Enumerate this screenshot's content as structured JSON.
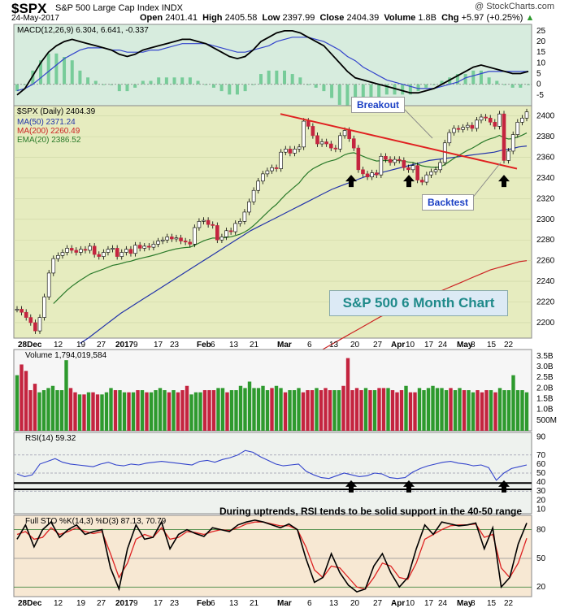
{
  "header": {
    "symbol": "$SPX",
    "name": "S&P 500 Large Cap Index",
    "exchange": "INDX",
    "copyright": "@ StockCharts.com",
    "date": "24-May-2017",
    "open_label": "Open",
    "open": "2401.41",
    "high_label": "High",
    "high": "2405.58",
    "low_label": "Low",
    "low": "2397.99",
    "close_label": "Close",
    "close": "2404.39",
    "volume_label": "Volume",
    "volume": "1.8B",
    "chg_label": "Chg",
    "chg": "+5.97 (+0.25%)",
    "chg_arrow": "▲"
  },
  "colors": {
    "price_bg": "#e6ecbf",
    "macd_bg": "#d7ecde",
    "vol_bg": "#f6f6f6",
    "rsi_bg": "#eef2ee",
    "sto_bg": "#f7e8d3",
    "up": "#2e9a2e",
    "down": "#c4243f",
    "ma50": "#2233aa",
    "ma200": "#cc2222",
    "ema20": "#2a7a2a",
    "trend": "#e02020",
    "macd": "#000000",
    "signal": "#3344cc",
    "hist": "#77cc99"
  },
  "annotations": {
    "breakout": "Breakout",
    "backtest": "Backtest",
    "title": "S&P 500 6 Month Chart",
    "rsi_note": "During uptrends, RSI tends to be solid support in the 40-50 range"
  },
  "chart_data": [
    {
      "type": "candlestick",
      "title": "$SPX (Daily) 2404.39",
      "legend": [
        {
          "name": "MA(50) 2371.24",
          "color": "#2233aa"
        },
        {
          "name": "MA(200) 2260.49",
          "color": "#cc2222"
        },
        {
          "name": "EMA(20) 2386.52",
          "color": "#2a7a2a"
        }
      ],
      "ylim": [
        2185,
        2410
      ],
      "yticks": [
        2200,
        2220,
        2240,
        2260,
        2280,
        2300,
        2320,
        2340,
        2360,
        2380,
        2400
      ],
      "x_labels": [
        "28Dec",
        "12",
        "19",
        "27",
        "2017",
        "9",
        "17",
        "23",
        "Feb",
        "6",
        "13",
        "21",
        "Mar",
        "6",
        "13",
        "20",
        "27",
        "Apr",
        "10",
        "17",
        "24",
        "May",
        "8",
        "15",
        "22"
      ],
      "close": [
        2213,
        2210,
        2205,
        2200,
        2192,
        2205,
        2225,
        2248,
        2262,
        2265,
        2268,
        2272,
        2270,
        2268,
        2271,
        2270,
        2274,
        2266,
        2264,
        2268,
        2271,
        2272,
        2264,
        2268,
        2271,
        2267,
        2275,
        2272,
        2274,
        2273,
        2276,
        2279,
        2280,
        2283,
        2281,
        2282,
        2279,
        2278,
        2276,
        2292,
        2298,
        2299,
        2295,
        2294,
        2280,
        2283,
        2289,
        2288,
        2296,
        2298,
        2307,
        2317,
        2328,
        2337,
        2344,
        2347,
        2350,
        2349,
        2365,
        2368,
        2364,
        2368,
        2370,
        2395,
        2390,
        2381,
        2373,
        2375,
        2373,
        2369,
        2368,
        2381,
        2386,
        2378,
        2369,
        2348,
        2344,
        2341,
        2345,
        2343,
        2361,
        2358,
        2355,
        2358,
        2357,
        2350,
        2348,
        2352,
        2338,
        2336,
        2343,
        2346,
        2348,
        2355,
        2374,
        2384,
        2388,
        2387,
        2389,
        2391,
        2388,
        2396,
        2399,
        2398,
        2394,
        2390,
        2402,
        2357,
        2366,
        2382,
        2394,
        2398,
        2404
      ],
      "ma50": [
        2180,
        2185,
        2191,
        2197,
        2203,
        2209,
        2214,
        2219,
        2224,
        2229,
        2234,
        2239,
        2244,
        2249,
        2254,
        2259,
        2264,
        2269,
        2274,
        2279,
        2284,
        2289,
        2293,
        2297,
        2301,
        2305,
        2309,
        2313,
        2317,
        2321,
        2325,
        2329,
        2332,
        2335,
        2338,
        2341,
        2343,
        2345,
        2347,
        2349,
        2351,
        2353,
        2355,
        2357,
        2358,
        2359,
        2360,
        2361,
        2362,
        2363,
        2364,
        2365,
        2367,
        2368,
        2370,
        2371
      ],
      "ma200": [
        2150,
        2154,
        2158,
        2162,
        2166,
        2170,
        2174,
        2178,
        2182,
        2186,
        2190,
        2194,
        2198,
        2202,
        2206,
        2209,
        2212,
        2215,
        2218,
        2221,
        2224,
        2227,
        2230,
        2233,
        2236,
        2239,
        2242,
        2245,
        2248,
        2251,
        2253,
        2255,
        2257,
        2259,
        2260
      ],
      "trendline": [
        [
          0,
          2394
        ],
        [
          1,
          2348
        ]
      ],
      "arrows": [
        "Mar 27",
        "Apr 13",
        "May 18"
      ]
    },
    {
      "type": "line",
      "title": "MACD(12,26,9) 6.304, 6.641, -0.337",
      "series": [
        {
          "name": "MACD",
          "color": "#000000"
        },
        {
          "name": "Signal",
          "color": "#3344cc"
        },
        {
          "name": "Histogram",
          "color": "#77cc99"
        }
      ],
      "ylim": [
        -10,
        28
      ],
      "yticks": [
        -5,
        0,
        5,
        10,
        15,
        20,
        25
      ],
      "macd": [
        -5,
        -2,
        4,
        10,
        15,
        18,
        20,
        21,
        20,
        19,
        18,
        17,
        16,
        14,
        13,
        14,
        16,
        17,
        18,
        19,
        20,
        21,
        21,
        20,
        19,
        17,
        15,
        13,
        12,
        13,
        16,
        20,
        22,
        24,
        25,
        25,
        24,
        22,
        20,
        18,
        14,
        10,
        6,
        3,
        2,
        1,
        0,
        -1,
        -2,
        -3,
        -4,
        -4,
        -3,
        -2,
        0,
        2,
        4,
        6,
        8,
        9,
        8,
        7,
        6,
        5,
        5,
        6
      ],
      "signal": [
        -3,
        -2,
        0,
        3,
        6,
        9,
        12,
        14,
        16,
        17,
        17,
        17,
        16,
        16,
        15,
        15,
        15,
        16,
        16,
        17,
        18,
        19,
        19,
        19,
        19,
        18,
        17,
        16,
        15,
        15,
        16,
        17,
        18,
        20,
        21,
        22,
        22,
        22,
        21,
        20,
        18,
        16,
        13,
        11,
        8,
        6,
        4,
        2,
        1,
        0,
        -1,
        -2,
        -2,
        -2,
        -1,
        0,
        1,
        3,
        4,
        5,
        6,
        6,
        6,
        6,
        6,
        6
      ]
    },
    {
      "type": "bar",
      "title": "Volume 1,794,019,584",
      "ylim": [
        0,
        3.8
      ],
      "yticks": [
        "3.5B",
        "3.0B",
        "2.5B",
        "2.0B",
        "1.5B",
        "1.0B",
        "500M"
      ],
      "values": [
        2.6,
        3.1,
        2.8,
        1.9,
        2.2,
        1.8,
        1.9,
        2.0,
        2.1,
        1.9,
        1.9,
        3.3,
        2.0,
        1.8,
        1.7,
        1.7,
        1.8,
        1.8,
        1.7,
        1.7,
        1.8,
        2.0,
        1.9,
        1.9,
        1.8,
        1.8,
        1.8,
        1.9,
        1.9,
        1.8,
        1.8,
        1.9,
        2.0,
        1.9,
        1.8,
        1.9,
        1.8,
        1.9,
        2.1,
        1.7,
        1.8,
        1.8,
        1.9,
        1.9,
        1.9,
        2.0,
        2.0,
        1.8,
        1.9,
        1.9,
        2.1,
        2.0,
        2.3,
        2.0,
        2.0,
        2.1,
        1.9,
        2.0,
        2.1,
        2.0,
        1.8,
        1.9,
        1.9,
        2.0,
        1.8,
        1.9,
        1.9,
        2.0,
        1.9,
        2.0,
        1.9,
        1.9,
        1.9,
        2.1,
        3.4,
        1.9,
        2.0,
        1.9,
        2.0,
        1.9,
        1.9,
        2.0,
        2.0,
        2.0,
        1.9,
        1.8,
        1.9,
        2.1,
        1.8,
        1.8,
        2.0,
        1.9,
        2.0,
        2.1,
        2.0,
        2.0,
        1.9,
        2.0,
        1.9,
        2.0,
        1.9,
        1.9,
        1.8,
        1.9,
        1.8,
        1.9,
        1.9,
        1.8,
        2.0,
        1.9,
        1.9,
        2.6,
        1.9,
        1.9,
        1.8
      ]
    },
    {
      "type": "line",
      "title": "RSI(14) 59.32",
      "ylim": [
        5,
        95
      ],
      "yticks": [
        10,
        20,
        30,
        40,
        50,
        60,
        70,
        90
      ],
      "values": [
        49,
        46,
        48,
        60,
        63,
        66,
        62,
        60,
        59,
        58,
        57,
        60,
        62,
        59,
        58,
        60,
        59,
        61,
        62,
        63,
        62,
        61,
        60,
        59,
        63,
        64,
        62,
        65,
        67,
        70,
        75,
        73,
        68,
        64,
        60,
        58,
        59,
        60,
        52,
        48,
        45,
        44,
        47,
        50,
        48,
        46,
        47,
        50,
        49,
        45,
        44,
        45,
        51,
        55,
        58,
        60,
        62,
        63,
        61,
        60,
        58,
        59,
        56,
        42,
        50,
        55,
        57,
        59
      ]
    },
    {
      "type": "line",
      "title": "Full STO %K(14,3) %D(3) 87.13, 70.79",
      "ylim": [
        10,
        95
      ],
      "yticks": [
        20,
        50,
        80
      ],
      "k": [
        70,
        85,
        62,
        80,
        88,
        72,
        80,
        85,
        75,
        78,
        80,
        40,
        18,
        60,
        85,
        70,
        72,
        88,
        60,
        75,
        80,
        76,
        73,
        82,
        80,
        78,
        85,
        88,
        90,
        88,
        85,
        82,
        86,
        80,
        50,
        25,
        30,
        55,
        35,
        22,
        15,
        18,
        42,
        55,
        35,
        20,
        30,
        60,
        85,
        75,
        88,
        86,
        84,
        85,
        87,
        60,
        82,
        20,
        30,
        65,
        87
      ],
      "d": [
        75,
        78,
        70,
        72,
        82,
        75,
        78,
        82,
        78,
        76,
        78,
        55,
        30,
        45,
        70,
        75,
        72,
        82,
        70,
        72,
        78,
        77,
        75,
        78,
        80,
        79,
        82,
        86,
        88,
        88,
        86,
        84,
        84,
        80,
        62,
        38,
        30,
        42,
        40,
        30,
        20,
        18,
        30,
        45,
        42,
        30,
        28,
        45,
        70,
        75,
        80,
        84,
        85,
        85,
        86,
        72,
        75,
        40,
        30,
        45,
        71
      ]
    }
  ]
}
